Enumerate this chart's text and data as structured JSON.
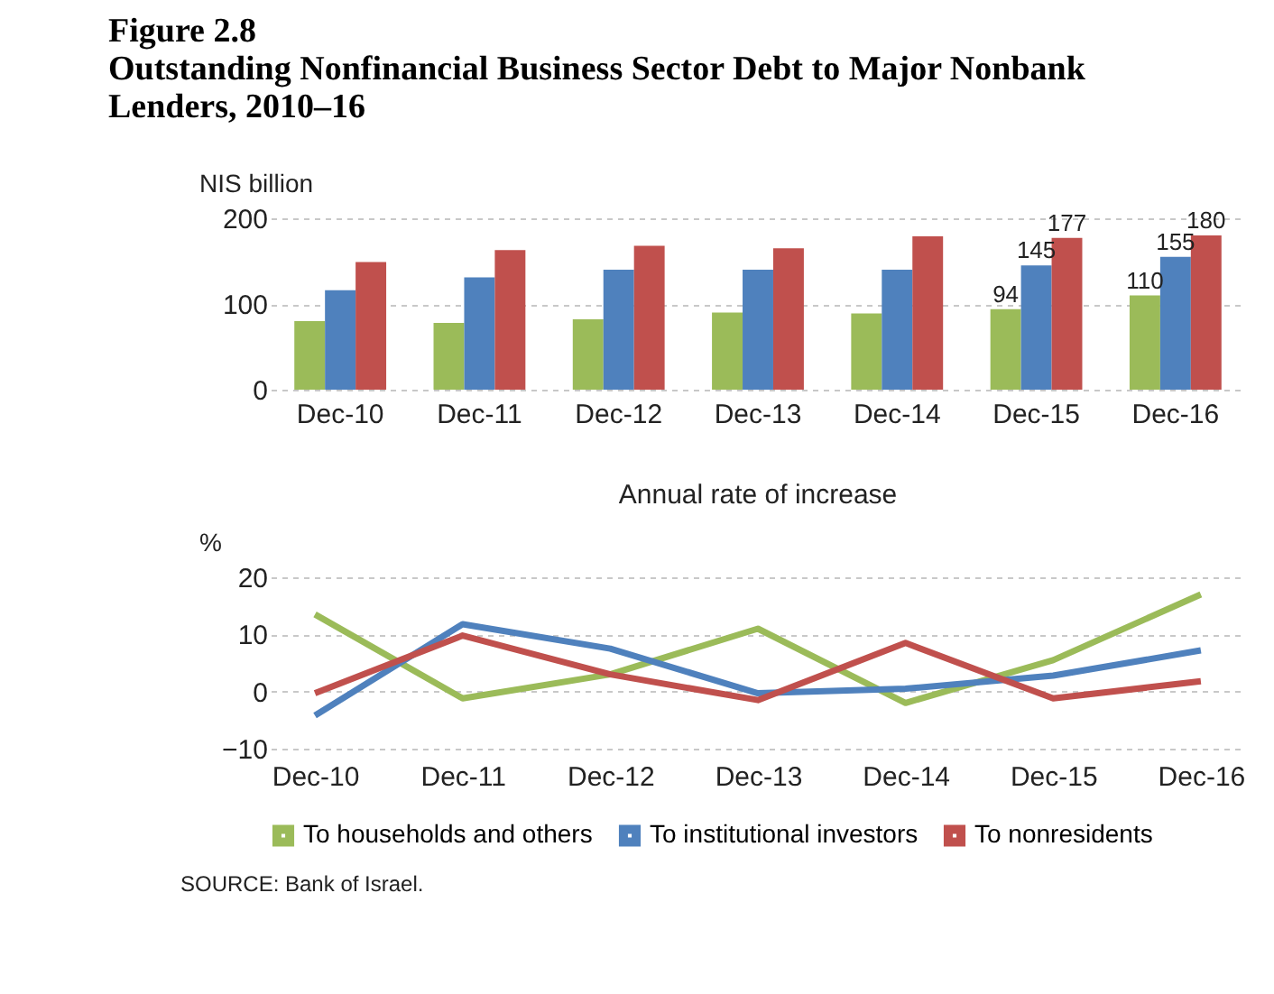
{
  "chart_data": [
    {
      "type": "bar",
      "title": [
        "Figure 2.8",
        "Outstanding Nonfinancial Business Sector Debt to Major Nonbank",
        "Lenders, 2010–16"
      ],
      "ylabel": "NIS billion",
      "categories": [
        "Dec-10",
        "Dec-11",
        "Dec-12",
        "Dec-13",
        "Dec-14",
        "Dec-15",
        "Dec-16"
      ],
      "series": [
        {
          "color": "#9bbb59",
          "values": [
            80,
            78,
            82,
            90,
            89,
            94,
            110
          ],
          "value_labels": [
            null,
            null,
            null,
            null,
            null,
            "94",
            "110"
          ]
        },
        {
          "color": "#4f81bd",
          "values": [
            116,
            131,
            140,
            140,
            140,
            145,
            155
          ],
          "value_labels": [
            null,
            null,
            null,
            null,
            null,
            "145",
            "155"
          ]
        },
        {
          "color": "#c0504d",
          "values": [
            149,
            163,
            168,
            165,
            179,
            177,
            180
          ],
          "value_labels": [
            null,
            null,
            null,
            null,
            null,
            "177",
            "180"
          ]
        }
      ],
      "ylim": [
        0,
        200
      ],
      "yticks": [
        0,
        100,
        200
      ],
      "grid": "y",
      "legend": false
    },
    {
      "type": "line",
      "title": "Annual rate of increase",
      "ylabel": "%",
      "categories": [
        "Dec-10",
        "Dec-11",
        "Dec-12",
        "Dec-13",
        "Dec-14",
        "Dec-15",
        "Dec-16"
      ],
      "series": [
        {
          "name": "To households and others",
          "color": "#9bbb59",
          "values": [
            13.5,
            -1.2,
            3,
            11,
            -2,
            5.5,
            17
          ]
        },
        {
          "name": "To institutional investors",
          "color": "#4f81bd",
          "values": [
            -4.2,
            11.8,
            7.5,
            -0.3,
            0.5,
            2.8,
            7.2
          ]
        },
        {
          "name": "To nonresidents",
          "color": "#c0504d",
          "values": [
            -0.3,
            9.8,
            3,
            -1.5,
            8.5,
            -1.2,
            1.8
          ]
        }
      ],
      "ylim": [
        -10,
        20
      ],
      "yticks": [
        -10,
        0,
        10,
        20
      ],
      "grid": "y",
      "legend": "bottom",
      "marker": "none",
      "line_style": "solid",
      "annotations": [
        "SOURCE: Bank of Israel."
      ]
    }
  ]
}
